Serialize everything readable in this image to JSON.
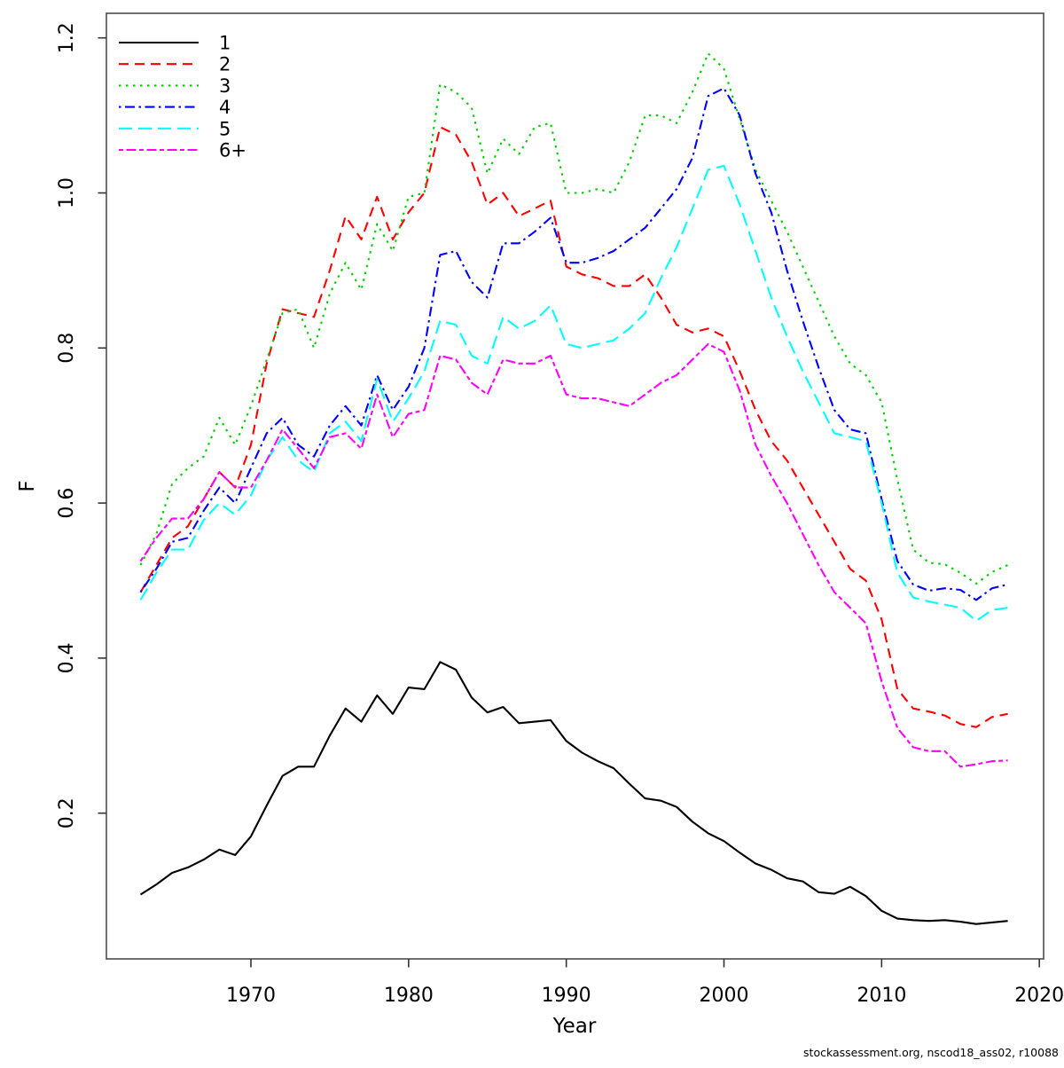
{
  "page": {
    "footer": "stockassessment.org, nscod18_ass02, r10088"
  },
  "chart_data": {
    "type": "line",
    "title": "",
    "xlabel": "Year",
    "ylabel": "F",
    "grid": false,
    "legend_position": "top-left",
    "xlim": [
      1961.5,
      2020.5
    ],
    "ylim": [
      0.0,
      1.23
    ],
    "xticks": [
      {
        "v": 1970,
        "label": "1970"
      },
      {
        "v": 1980,
        "label": "1980"
      },
      {
        "v": 1990,
        "label": "1990"
      },
      {
        "v": 2000,
        "label": "2000"
      },
      {
        "v": 2010,
        "label": "2010"
      },
      {
        "v": 2020,
        "label": "2020"
      }
    ],
    "yticks": [
      {
        "v": 0.2,
        "label": "0.2"
      },
      {
        "v": 0.4,
        "label": "0.4"
      },
      {
        "v": 0.6,
        "label": "0.6"
      },
      {
        "v": 0.8,
        "label": "0.8"
      },
      {
        "v": 1.0,
        "label": "1.0"
      },
      {
        "v": 1.2,
        "label": "1.2"
      }
    ],
    "x": [
      1963,
      1964,
      1965,
      1966,
      1967,
      1968,
      1969,
      1970,
      1971,
      1972,
      1973,
      1974,
      1975,
      1976,
      1977,
      1978,
      1979,
      1980,
      1981,
      1982,
      1983,
      1984,
      1985,
      1986,
      1987,
      1988,
      1989,
      1990,
      1991,
      1992,
      1993,
      1994,
      1995,
      1996,
      1997,
      1998,
      1999,
      2000,
      2001,
      2002,
      2003,
      2004,
      2005,
      2006,
      2007,
      2008,
      2009,
      2010,
      2011,
      2012,
      2013,
      2014,
      2015,
      2016,
      2017,
      2018
    ],
    "series": [
      {
        "name": "1",
        "color": "#000000",
        "linetype": "solid",
        "values": [
          0.095,
          0.108,
          0.123,
          0.13,
          0.14,
          0.153,
          0.146,
          0.17,
          0.21,
          0.248,
          0.26,
          0.26,
          0.3,
          0.335,
          0.318,
          0.352,
          0.328,
          0.362,
          0.36,
          0.395,
          0.385,
          0.349,
          0.33,
          0.337,
          0.316,
          0.318,
          0.32,
          0.293,
          0.278,
          0.267,
          0.258,
          0.238,
          0.219,
          0.216,
          0.208,
          0.189,
          0.174,
          0.164,
          0.149,
          0.135,
          0.127,
          0.116,
          0.112,
          0.098,
          0.096,
          0.105,
          0.093,
          0.074,
          0.064,
          0.062,
          0.061,
          0.062,
          0.06,
          0.057,
          0.059,
          0.061
        ]
      },
      {
        "name": "2",
        "color": "#FF0000",
        "linetype": "dashed",
        "values": [
          0.485,
          0.52,
          0.555,
          0.57,
          0.605,
          0.64,
          0.62,
          0.675,
          0.78,
          0.85,
          0.845,
          0.84,
          0.9,
          0.97,
          0.94,
          0.995,
          0.94,
          0.975,
          1.0,
          1.085,
          1.075,
          1.04,
          0.985,
          1.0,
          0.97,
          0.98,
          0.99,
          0.905,
          0.895,
          0.89,
          0.88,
          0.88,
          0.895,
          0.865,
          0.83,
          0.82,
          0.825,
          0.815,
          0.77,
          0.72,
          0.68,
          0.655,
          0.62,
          0.585,
          0.55,
          0.515,
          0.5,
          0.45,
          0.36,
          0.335,
          0.331,
          0.326,
          0.315,
          0.311,
          0.324,
          0.328
        ]
      },
      {
        "name": "3",
        "color": "#00CD00",
        "linetype": "dotted",
        "values": [
          0.52,
          0.56,
          0.625,
          0.645,
          0.66,
          0.71,
          0.675,
          0.725,
          0.785,
          0.845,
          0.85,
          0.8,
          0.87,
          0.91,
          0.875,
          0.96,
          0.925,
          0.995,
          1.0,
          1.14,
          1.13,
          1.11,
          1.025,
          1.07,
          1.05,
          1.085,
          1.09,
          1.0,
          1.0,
          1.005,
          1.0,
          1.04,
          1.1,
          1.1,
          1.09,
          1.13,
          1.18,
          1.16,
          1.095,
          1.03,
          0.99,
          0.95,
          0.905,
          0.86,
          0.815,
          0.78,
          0.765,
          0.73,
          0.63,
          0.54,
          0.523,
          0.521,
          0.51,
          0.496,
          0.511,
          0.52
        ]
      },
      {
        "name": "4",
        "color": "#0000FF",
        "linetype": "dotdash",
        "values": [
          0.485,
          0.515,
          0.55,
          0.555,
          0.59,
          0.62,
          0.6,
          0.645,
          0.69,
          0.71,
          0.675,
          0.66,
          0.7,
          0.725,
          0.7,
          0.765,
          0.72,
          0.75,
          0.8,
          0.92,
          0.925,
          0.885,
          0.865,
          0.935,
          0.935,
          0.95,
          0.968,
          0.91,
          0.91,
          0.916,
          0.925,
          0.94,
          0.955,
          0.98,
          1.005,
          1.045,
          1.125,
          1.135,
          1.1,
          1.025,
          0.975,
          0.9,
          0.835,
          0.775,
          0.72,
          0.695,
          0.69,
          0.605,
          0.525,
          0.495,
          0.487,
          0.49,
          0.488,
          0.475,
          0.49,
          0.495
        ]
      },
      {
        "name": "5",
        "color": "#00FFFF",
        "linetype": "longdash",
        "values": [
          0.475,
          0.51,
          0.54,
          0.54,
          0.578,
          0.6,
          0.585,
          0.61,
          0.655,
          0.685,
          0.655,
          0.64,
          0.69,
          0.705,
          0.68,
          0.76,
          0.705,
          0.735,
          0.77,
          0.835,
          0.83,
          0.79,
          0.78,
          0.84,
          0.825,
          0.835,
          0.855,
          0.805,
          0.8,
          0.805,
          0.81,
          0.825,
          0.845,
          0.89,
          0.93,
          0.98,
          1.03,
          1.035,
          0.985,
          0.925,
          0.865,
          0.815,
          0.77,
          0.73,
          0.69,
          0.685,
          0.68,
          0.6,
          0.51,
          0.478,
          0.473,
          0.469,
          0.465,
          0.448,
          0.462,
          0.465
        ]
      },
      {
        "name": "6+",
        "color": "#FF00FF",
        "linetype": "twodash",
        "values": [
          0.525,
          0.555,
          0.58,
          0.58,
          0.605,
          0.64,
          0.62,
          0.62,
          0.655,
          0.695,
          0.67,
          0.645,
          0.685,
          0.69,
          0.67,
          0.74,
          0.685,
          0.715,
          0.72,
          0.79,
          0.785,
          0.755,
          0.74,
          0.785,
          0.78,
          0.78,
          0.79,
          0.74,
          0.735,
          0.735,
          0.73,
          0.725,
          0.74,
          0.755,
          0.765,
          0.785,
          0.805,
          0.795,
          0.745,
          0.675,
          0.635,
          0.6,
          0.56,
          0.52,
          0.485,
          0.465,
          0.445,
          0.37,
          0.31,
          0.285,
          0.28,
          0.28,
          0.26,
          0.263,
          0.267,
          0.268
        ]
      }
    ]
  }
}
